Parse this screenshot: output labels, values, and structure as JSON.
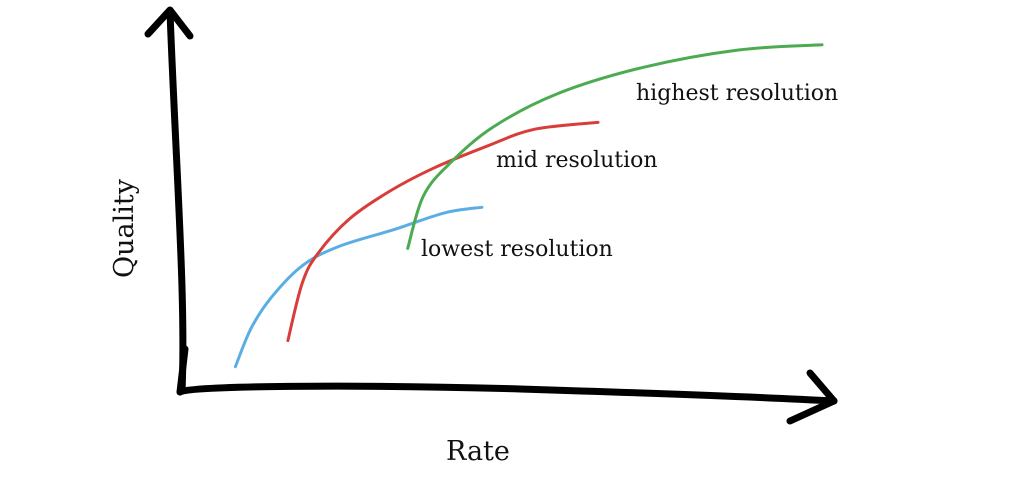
{
  "chart_data": {
    "type": "line",
    "title": "",
    "xlabel": "Rate",
    "ylabel": "Quality",
    "xlim": [
      0,
      100
    ],
    "ylim": [
      0,
      100
    ],
    "grid": false,
    "legend": "none",
    "series": [
      {
        "name": "lowest resolution",
        "color": "#5aaee3",
        "x": [
          6.0,
          8.5,
          11.8,
          16.7,
          22.5,
          31.6,
          39.5,
          45.5
        ],
        "y": [
          9.0,
          20.0,
          29.0,
          38.0,
          43.5,
          48.5,
          53.2,
          54.8
        ]
      },
      {
        "name": "mid resolution",
        "color": "#d93d3a",
        "x": [
          14.4,
          16.7,
          19.2,
          24.3,
          30.8,
          37.7,
          46.5,
          53.9,
          64.1
        ],
        "y": [
          16.5,
          33.0,
          41.5,
          51.5,
          59.5,
          66.0,
          72.5,
          77.2,
          79.2
        ]
      },
      {
        "name": "highest resolution",
        "color": "#4cab50",
        "x": [
          33.6,
          36.1,
          40.4,
          47.4,
          57.7,
          71.3,
          86.6,
          100.0
        ],
        "y": [
          43.0,
          58.0,
          67.5,
          78.0,
          87.5,
          95.0,
          100.0,
          101.5
        ]
      }
    ]
  }
}
